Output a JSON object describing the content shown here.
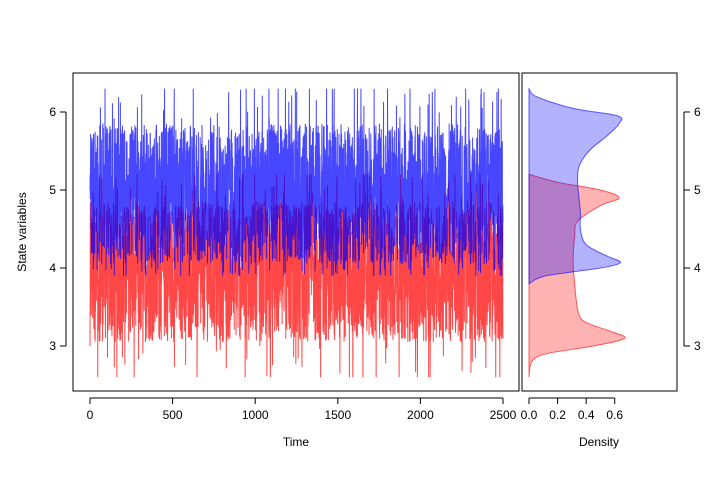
{
  "chart_data": [
    {
      "type": "line",
      "xlabel": "Time",
      "ylabel": "State variables",
      "xlim": [
        0,
        2500
      ],
      "ylim": [
        2.4,
        6.5
      ],
      "x_ticks": [
        0,
        500,
        1000,
        1500,
        2000,
        2500
      ],
      "y_ticks": [
        3,
        4,
        5,
        6
      ],
      "grid": false,
      "series": [
        {
          "color": "#ff0000",
          "start": 3.0,
          "band_low": 3.0,
          "band_high": 4.9,
          "min": 2.6,
          "max": 5.2
        },
        {
          "color": "#0000ff",
          "start": 5.0,
          "band_low": 4.0,
          "band_high": 5.9,
          "min": 3.9,
          "max": 6.3
        }
      ]
    },
    {
      "type": "area",
      "orientation": "horizontal",
      "xlabel": "Density",
      "x_ticks": [
        0.0,
        0.2,
        0.4,
        0.6
      ],
      "xlim": [
        0,
        0.7
      ],
      "y_ticks": [
        3,
        4,
        5,
        6
      ],
      "ylim": [
        2.4,
        6.5
      ],
      "series": [
        {
          "color": "#ff0000",
          "points": [
            [
              2.6,
              0.0
            ],
            [
              2.8,
              0.02
            ],
            [
              2.9,
              0.12
            ],
            [
              3.0,
              0.45
            ],
            [
              3.1,
              0.67
            ],
            [
              3.2,
              0.55
            ],
            [
              3.3,
              0.4
            ],
            [
              3.4,
              0.35
            ],
            [
              3.6,
              0.33
            ],
            [
              3.8,
              0.32
            ],
            [
              4.0,
              0.31
            ],
            [
              4.2,
              0.31
            ],
            [
              4.4,
              0.32
            ],
            [
              4.6,
              0.34
            ],
            [
              4.8,
              0.5
            ],
            [
              4.9,
              0.63
            ],
            [
              5.0,
              0.5
            ],
            [
              5.1,
              0.2
            ],
            [
              5.2,
              0.0
            ]
          ]
        },
        {
          "color": "#0000ff",
          "points": [
            [
              3.8,
              0.0
            ],
            [
              3.9,
              0.12
            ],
            [
              4.0,
              0.5
            ],
            [
              4.07,
              0.64
            ],
            [
              4.15,
              0.55
            ],
            [
              4.3,
              0.4
            ],
            [
              4.5,
              0.36
            ],
            [
              4.7,
              0.36
            ],
            [
              4.9,
              0.35
            ],
            [
              5.1,
              0.34
            ],
            [
              5.3,
              0.35
            ],
            [
              5.5,
              0.42
            ],
            [
              5.7,
              0.55
            ],
            [
              5.85,
              0.63
            ],
            [
              5.95,
              0.62
            ],
            [
              6.05,
              0.3
            ],
            [
              6.2,
              0.05
            ],
            [
              6.3,
              0.0
            ]
          ]
        }
      ]
    }
  ]
}
